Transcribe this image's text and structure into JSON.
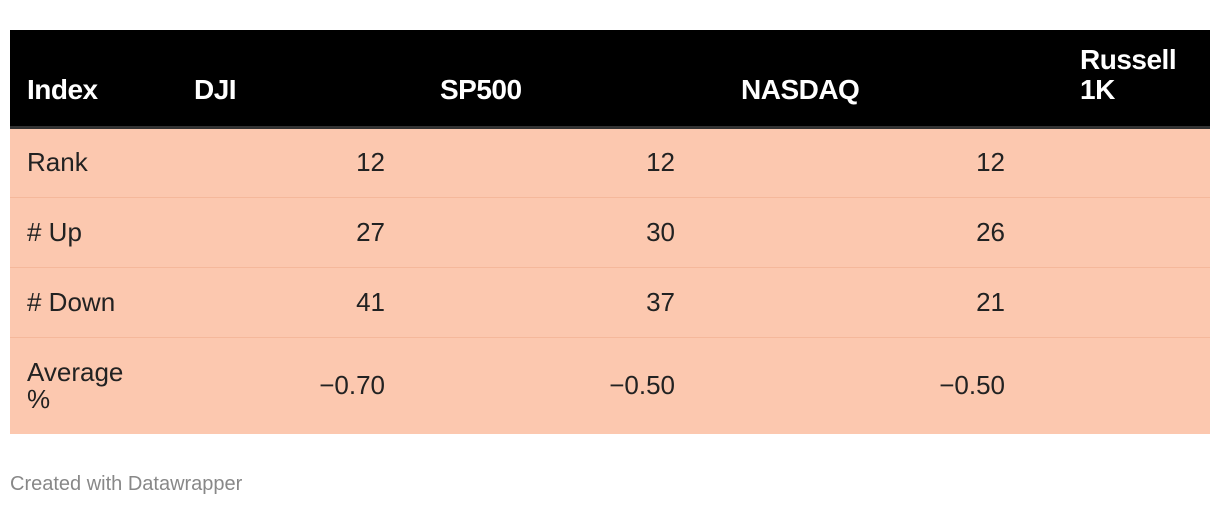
{
  "chart_data": {
    "type": "table",
    "columns": [
      "Index",
      "DJI",
      "SP500",
      "NASDAQ",
      "Russell 1K"
    ],
    "rows": [
      {
        "label": "Rank",
        "values": [
          "12",
          "12",
          "12",
          ""
        ]
      },
      {
        "label": "# Up",
        "values": [
          "27",
          "30",
          "26",
          ""
        ]
      },
      {
        "label": "# Down",
        "values": [
          "41",
          "37",
          "21",
          ""
        ]
      },
      {
        "label": "Average %",
        "values": [
          "−0.70",
          "−0.50",
          "−0.50",
          ""
        ]
      }
    ],
    "colors": {
      "header_bg": "#000000",
      "header_text": "#ffffff",
      "row_bg": "#fcc8af",
      "row_text": "#222222"
    }
  },
  "footer": {
    "credit": "Created with Datawrapper"
  }
}
